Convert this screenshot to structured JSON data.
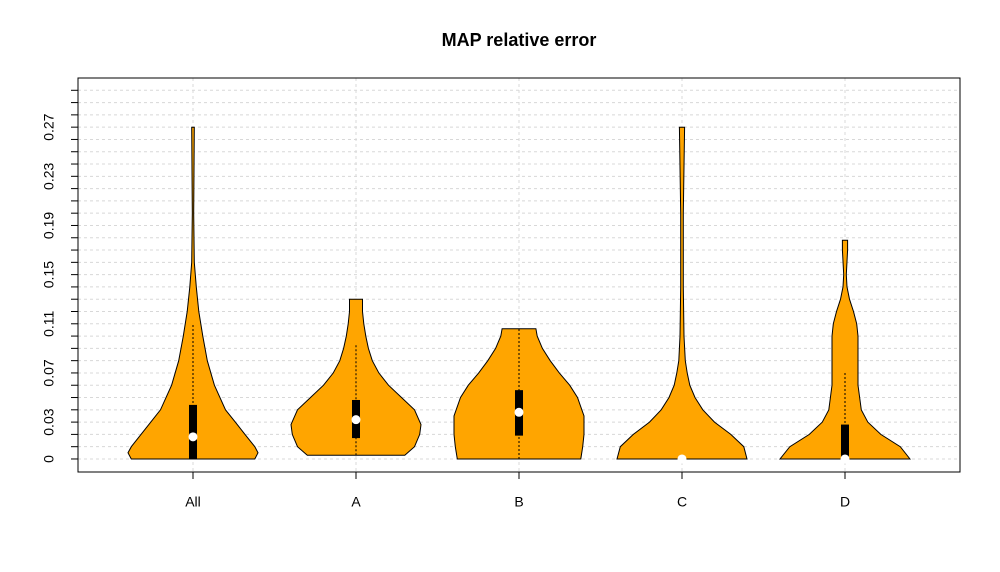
{
  "chart_data": {
    "type": "violin",
    "title": "MAP relative error",
    "categories": [
      "All",
      "A",
      "B",
      "C",
      "D"
    ],
    "ylim": [
      -0.0106,
      0.31
    ],
    "yticks": [
      0,
      0.03,
      0.07,
      0.11,
      0.15,
      0.19,
      0.23,
      0.27
    ],
    "yminor": [
      0.01,
      0.02,
      0.04,
      0.05,
      0.06,
      0.08,
      0.09,
      0.1,
      0.12,
      0.13,
      0.14,
      0.16,
      0.17,
      0.18,
      0.2,
      0.21,
      0.22,
      0.24,
      0.25,
      0.26,
      0.28,
      0.29,
      0.3
    ],
    "grid": true,
    "color": "#ffa500",
    "series": [
      {
        "density": {
          "y": [
            0,
            0.005,
            0.01,
            0.02,
            0.03,
            0.04,
            0.06,
            0.08,
            0.1,
            0.12,
            0.14,
            0.16,
            0.2,
            0.27
          ],
          "width": [
            0.95,
            1,
            0.95,
            0.8,
            0.65,
            0.5,
            0.33,
            0.22,
            0.15,
            0.09,
            0.05,
            0.02,
            0.01,
            0.02
          ]
        },
        "whisker_low": 0,
        "q1": 0,
        "median": 0.018,
        "q3": 0.044,
        "whisker_high": 0.11
      },
      {
        "density": {
          "y": [
            0.003,
            0.01,
            0.02,
            0.028,
            0.04,
            0.05,
            0.06,
            0.07,
            0.08,
            0.09,
            0.1,
            0.11,
            0.12,
            0.13
          ],
          "width": [
            0.75,
            0.9,
            0.98,
            1,
            0.9,
            0.7,
            0.5,
            0.35,
            0.25,
            0.19,
            0.15,
            0.12,
            0.1,
            0.1
          ]
        },
        "whisker_low": 0.003,
        "q1": 0.017,
        "median": 0.032,
        "q3": 0.048,
        "whisker_high": 0.094
      },
      {
        "density": {
          "y": [
            0,
            0.01,
            0.02,
            0.035,
            0.05,
            0.06,
            0.07,
            0.08,
            0.09,
            0.1,
            0.106
          ],
          "width": [
            0.95,
            0.98,
            1,
            1,
            0.9,
            0.78,
            0.62,
            0.48,
            0.36,
            0.28,
            0.26
          ]
        },
        "whisker_low": 0,
        "q1": 0.019,
        "median": 0.038,
        "q3": 0.056,
        "whisker_high": 0.106
      },
      {
        "density": {
          "y": [
            0,
            0.01,
            0.02,
            0.03,
            0.04,
            0.05,
            0.06,
            0.07,
            0.08,
            0.1,
            0.14,
            0.2,
            0.27
          ],
          "width": [
            1,
            0.95,
            0.75,
            0.5,
            0.32,
            0.2,
            0.12,
            0.08,
            0.05,
            0.03,
            0.02,
            0.02,
            0.04
          ]
        },
        "whisker_low": 0,
        "q1": 0,
        "median": 0,
        "q3": 0.001,
        "whisker_high": 0.001
      },
      {
        "density": {
          "y": [
            0,
            0.01,
            0.02,
            0.03,
            0.04,
            0.06,
            0.08,
            0.09,
            0.1,
            0.11,
            0.12,
            0.13,
            0.14,
            0.15,
            0.17,
            0.178
          ],
          "width": [
            1,
            0.85,
            0.55,
            0.35,
            0.25,
            0.2,
            0.2,
            0.2,
            0.2,
            0.18,
            0.13,
            0.07,
            0.03,
            0.02,
            0.04,
            0.04
          ]
        },
        "whisker_low": 0,
        "q1": 0,
        "median": 0,
        "q3": 0.028,
        "whisker_high": 0.07
      }
    ]
  }
}
